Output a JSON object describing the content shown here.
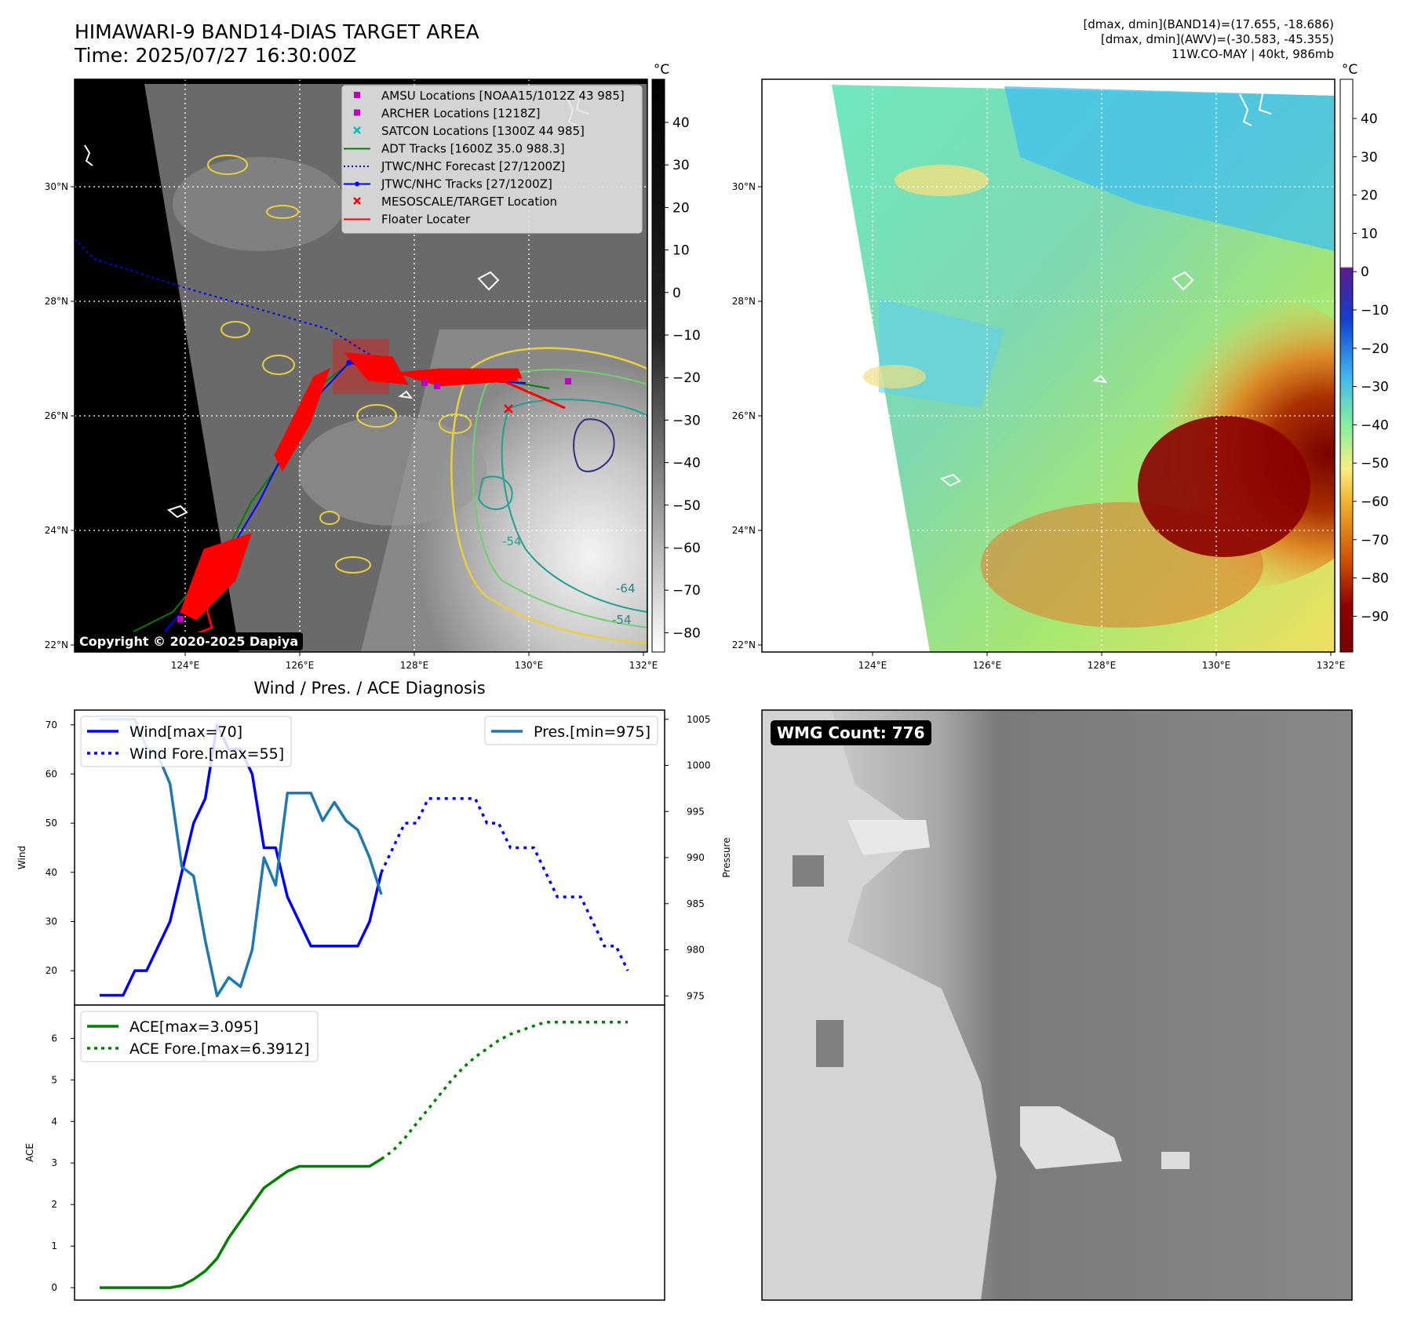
{
  "header": {
    "title_line1": "HIMAWARI-9 BAND14-DIAS TARGET AREA",
    "title_line2": "Time: 2025/07/27 16:30:00Z",
    "info_line1": "[dmax, dmin](BAND14)=(17.655, -18.686)",
    "info_line2": "[dmax, dmin](AWV)=(-30.583, -45.355)",
    "info_line3": "11W.CO-MAY | 40kt, 986mb"
  },
  "map": {
    "lon_ticks": [
      "124°E",
      "126°E",
      "128°E",
      "130°E",
      "132°E"
    ],
    "lat_ticks": [
      "30°N",
      "28°N",
      "26°N",
      "24°N",
      "22°N"
    ],
    "copyright": "Copyright © 2020-2025 Dapiya",
    "legend": [
      {
        "label": "AMSU Locations [NOAA15/1012Z 43 985]",
        "color": "#bf00bf",
        "marker": "square"
      },
      {
        "label": "ARCHER Locations [1218Z]",
        "color": "#bf00bf",
        "marker": "square"
      },
      {
        "label": "SATCON Locations [1300Z 44 985]",
        "color": "#00bfbf",
        "marker": "x"
      },
      {
        "label": "ADT Tracks [1600Z 35.0 988.3]",
        "color": "#008000",
        "marker": "line"
      },
      {
        "label": "JTWC/NHC Forecast [27/1200Z]",
        "color": "#0000ff",
        "marker": "dotted"
      },
      {
        "label": "JTWC/NHC Tracks [27/1200Z]",
        "color": "#0000ff",
        "marker": "line-dot"
      },
      {
        "label": "MESOSCALE/TARGET Location",
        "color": "#ff0000",
        "marker": "x"
      },
      {
        "label": "Floater Locater",
        "color": "#ff0000",
        "marker": "line"
      }
    ],
    "contour_labels": [
      "-54",
      "-64",
      "-54"
    ]
  },
  "colorbar_left": {
    "unit": "°C",
    "ticks": [
      "40",
      "30",
      "20",
      "10",
      "0",
      "−10",
      "−20",
      "−30",
      "−40",
      "−50",
      "−60",
      "−70",
      "−80"
    ]
  },
  "colorbar_right": {
    "unit": "°C",
    "ticks": [
      "40",
      "30",
      "20",
      "10",
      "0",
      "−10",
      "−20",
      "−30",
      "−40",
      "−50",
      "−60",
      "−70",
      "−80",
      "−90"
    ]
  },
  "diagnosis": {
    "title": "Wind / Pres. / ACE Diagnosis",
    "wind_axis_label": "Wind",
    "pressure_axis_label": "Pressure",
    "ace_axis_label": "ACE",
    "wind_legend": "Wind[max=70]",
    "wind_fore_legend": "Wind Fore.[max=55]",
    "pres_legend": "Pres.[min=975]",
    "ace_legend": "ACE[max=3.095]",
    "ace_fore_legend": "ACE Fore.[max=6.3912]",
    "wind_ticks": [
      "70",
      "60",
      "50",
      "40",
      "30",
      "20"
    ],
    "pres_ticks": [
      "1005",
      "1000",
      "995",
      "990",
      "985",
      "980",
      "975"
    ],
    "ace_ticks": [
      "6",
      "5",
      "4",
      "3",
      "2",
      "1",
      "0"
    ]
  },
  "wmg": {
    "label": "WMG Count: 776"
  },
  "chart_data": [
    {
      "type": "line",
      "title": "Wind / Pres. / ACE Diagnosis",
      "ylabel": "Wind",
      "ylim": [
        13,
        73
      ],
      "series": [
        {
          "name": "Wind[max=70]",
          "color": "#0000ff",
          "style": "solid",
          "x": [
            0,
            1,
            2,
            3,
            4,
            5,
            6,
            7,
            8,
            9,
            10,
            11,
            12,
            13,
            14,
            15,
            16,
            17,
            18,
            19,
            20,
            21,
            22,
            23,
            24
          ],
          "values": [
            15,
            15,
            15,
            20,
            20,
            25,
            30,
            40,
            50,
            55,
            70,
            65,
            65,
            60,
            45,
            45,
            35,
            30,
            25,
            25,
            25,
            25,
            25,
            30,
            40
          ]
        },
        {
          "name": "Wind Fore.[max=55]",
          "color": "#0000ff",
          "style": "dotted",
          "x": [
            24,
            25,
            26,
            27,
            28,
            29,
            30,
            31,
            32,
            33,
            34,
            35,
            36,
            37,
            38,
            39,
            40,
            41,
            42,
            43,
            44,
            45
          ],
          "values": [
            40,
            45,
            50,
            50,
            55,
            55,
            55,
            55,
            55,
            50,
            50,
            45,
            45,
            45,
            40,
            35,
            35,
            35,
            30,
            25,
            25,
            20
          ]
        }
      ],
      "secondary_axis": {
        "ylabel": "Pressure",
        "ylim": [
          974,
          1006
        ],
        "series": [
          {
            "name": "Pres.[min=975]",
            "color": "#1f77b4",
            "style": "solid",
            "x": [
              0,
              1,
              2,
              3,
              4,
              5,
              6,
              7,
              8,
              9,
              10,
              11,
              12,
              13,
              14,
              15,
              16,
              17,
              18,
              19,
              20,
              21,
              22,
              23,
              24
            ],
            "values": [
              1005,
              1005,
              1005,
              1005,
              1002,
              1001,
              998,
              989,
              988,
              981,
              975,
              977,
              976,
              980,
              990,
              987,
              997,
              997,
              997,
              994,
              996,
              994,
              993,
              990,
              986
            ]
          }
        ]
      }
    },
    {
      "type": "line",
      "ylabel": "ACE",
      "ylim": [
        -0.3,
        6.8
      ],
      "series": [
        {
          "name": "ACE[max=3.095]",
          "color": "#008000",
          "style": "solid",
          "x": [
            0,
            1,
            2,
            3,
            4,
            5,
            6,
            7,
            8,
            9,
            10,
            11,
            12,
            13,
            14,
            15,
            16,
            17,
            18,
            19,
            20,
            21,
            22,
            23,
            24
          ],
          "values": [
            0,
            0,
            0,
            0,
            0,
            0,
            0,
            0.05,
            0.2,
            0.4,
            0.7,
            1.2,
            1.6,
            2.0,
            2.4,
            2.6,
            2.8,
            2.92,
            2.92,
            2.92,
            2.92,
            2.92,
            2.92,
            2.92,
            3.095
          ]
        },
        {
          "name": "ACE Fore.[max=6.3912]",
          "color": "#008000",
          "style": "dotted",
          "x": [
            24,
            25,
            26,
            27,
            28,
            29,
            30,
            31,
            32,
            33,
            34,
            35,
            36,
            37,
            38,
            39,
            40,
            41,
            42,
            43,
            44,
            45
          ],
          "values": [
            3.095,
            3.3,
            3.6,
            3.95,
            4.3,
            4.65,
            5.0,
            5.3,
            5.55,
            5.75,
            5.95,
            6.1,
            6.2,
            6.3,
            6.39,
            6.39,
            6.39,
            6.39,
            6.39,
            6.39,
            6.39,
            6.39
          ]
        }
      ]
    }
  ]
}
